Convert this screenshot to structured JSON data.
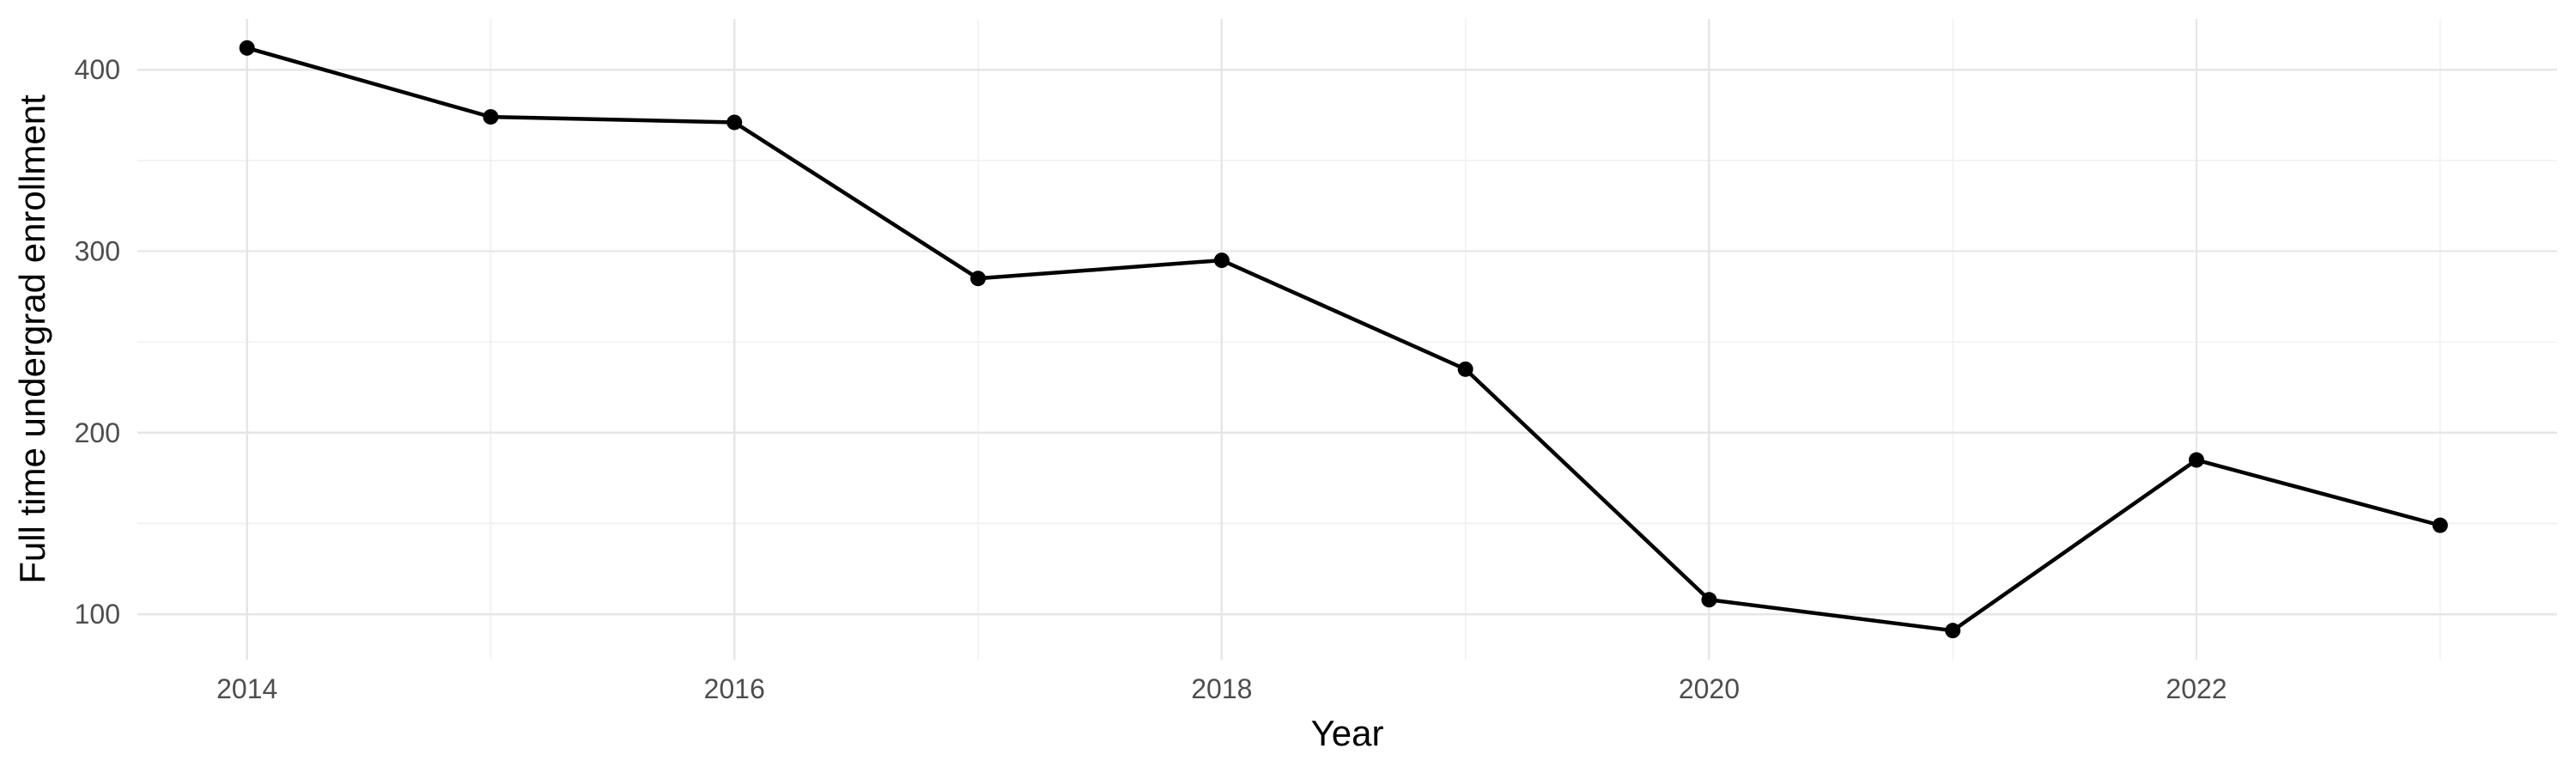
{
  "chart_data": {
    "type": "line",
    "title": "",
    "xlabel": "Year",
    "ylabel": "Full time undergrad enrollment",
    "series": [
      {
        "name": "Full time undergrad enrollment",
        "x": [
          2014,
          2015,
          2016,
          2017,
          2018,
          2019,
          2020,
          2021,
          2022,
          2023
        ],
        "values": [
          412,
          374,
          371,
          285,
          295,
          235,
          108,
          91,
          185,
          149
        ]
      }
    ],
    "x_major_ticks": [
      2014,
      2016,
      2018,
      2020,
      2022
    ],
    "x_minor_gridlines": [
      2015,
      2017,
      2019,
      2021,
      2023
    ],
    "y_major_ticks": [
      100,
      200,
      300,
      400
    ],
    "y_minor_gridlines": [
      150,
      250,
      350
    ],
    "xlim": [
      2013.55,
      2023.48
    ],
    "ylim": [
      75,
      428
    ],
    "grid": true,
    "legend": "none",
    "marker": "circle",
    "colors": {
      "line": "#000000",
      "point": "#000000",
      "grid_major": "#E6E6E6",
      "grid_minor": "#F1F1F1",
      "tick_label": "#4D4D4D",
      "axis_title": "#000000",
      "background": "#FFFFFF"
    }
  }
}
